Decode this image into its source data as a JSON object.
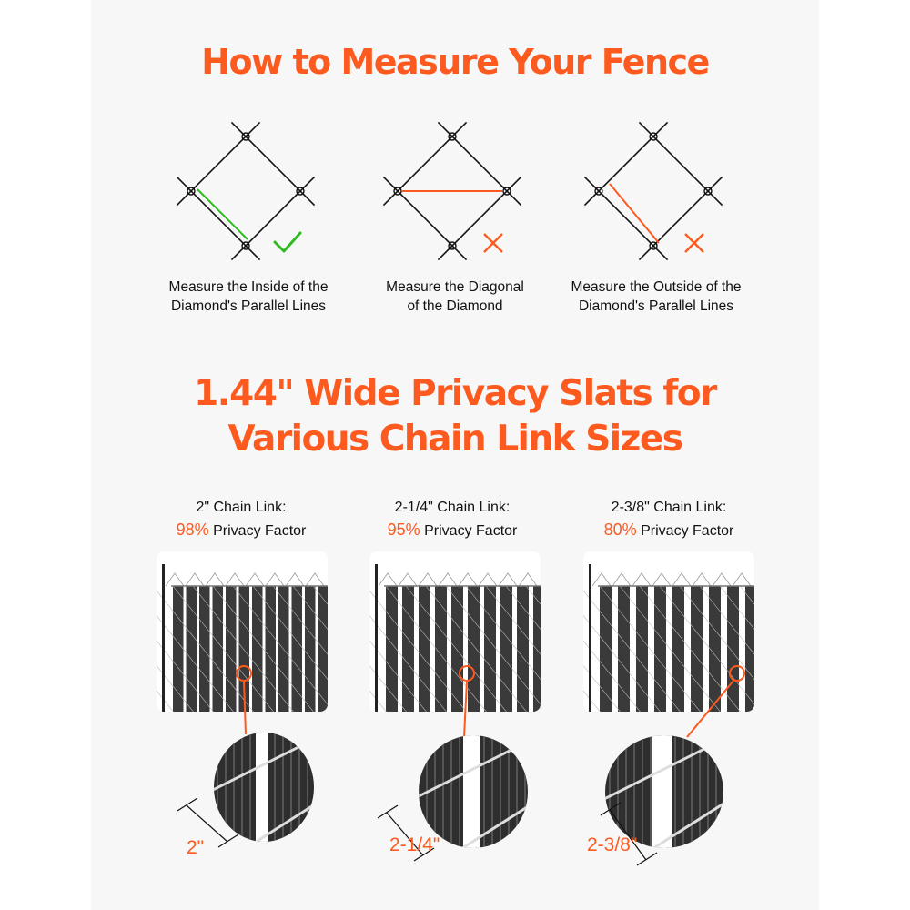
{
  "title": "How to Measure Your Fence",
  "methods": [
    {
      "caption_line1": "Measure the Inside of the",
      "caption_line2": "Diamond's Parallel Lines",
      "verdict": "correct",
      "verdict_icon": "checkmark-icon",
      "line_color": "#2dbb1f"
    },
    {
      "caption_line1": "Measure the Diagonal",
      "caption_line2": "of the Diamond",
      "verdict": "incorrect",
      "verdict_icon": "x-icon",
      "line_color": "#fc5a1f"
    },
    {
      "caption_line1": "Measure the Outside of the",
      "caption_line2": "Diamond's Parallel Lines",
      "verdict": "incorrect",
      "verdict_icon": "x-icon",
      "line_color": "#fc5a1f"
    }
  ],
  "subtitle_line1": "1.44\" Wide Privacy Slats for",
  "subtitle_line2": "Various Chain Link Sizes",
  "sizes": [
    {
      "heading": "2\" Chain Link:",
      "percent": "98%",
      "suffix": " Privacy Factor",
      "dimension": "2\"",
      "privacy": 98
    },
    {
      "heading": "2-1/4\" Chain Link:",
      "percent": "95%",
      "suffix": " Privacy Factor",
      "dimension": "2-1/4\"",
      "privacy": 95
    },
    {
      "heading": "2-3/8\" Chain Link:",
      "percent": "80%",
      "suffix": " Privacy Factor",
      "dimension": "2-3/8\"",
      "privacy": 80
    }
  ],
  "colors": {
    "accent": "#fc5a1f",
    "correct": "#2dbb1f",
    "background": "#f7f7f7",
    "slat": "#3a3a3a"
  }
}
